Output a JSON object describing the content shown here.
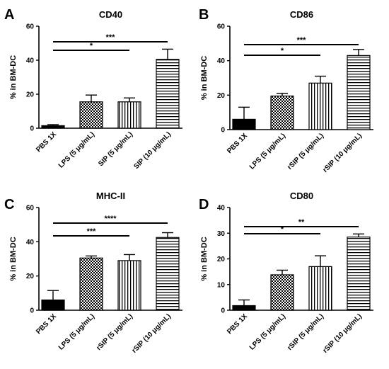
{
  "chart_data": [
    {
      "type": "bar",
      "panel": "A",
      "title": "CD40",
      "ylabel": "% in BM-DC",
      "ylim": [
        0,
        60
      ],
      "yticks": [
        0,
        20,
        40,
        60
      ],
      "categories": [
        "PBS 1X",
        "LPS (5 μg/mL)",
        "SIP (5 μg/mL)",
        "SIP (10 μg/mL)"
      ],
      "values": [
        1.5,
        15.5,
        15.5,
        40.5
      ],
      "errors": [
        0.6,
        4.0,
        2.3,
        6.0
      ],
      "patterns": [
        "solid",
        "checker",
        "vertical",
        "horizontal"
      ],
      "significance": [
        {
          "from": 0,
          "to": 2,
          "label": "*"
        },
        {
          "from": 0,
          "to": 3,
          "label": "***"
        }
      ]
    },
    {
      "type": "bar",
      "panel": "B",
      "title": "CD86",
      "ylabel": "% in BM-DC",
      "ylim": [
        0,
        60
      ],
      "yticks": [
        0,
        20,
        40,
        60
      ],
      "categories": [
        "PBS 1X",
        "LPS (5 μg/mL)",
        "rSIP (5 μg/mL)",
        "rSIP (10 μg/mL)"
      ],
      "values": [
        6,
        19.5,
        27,
        43
      ],
      "errors": [
        7,
        1.5,
        4,
        3.5
      ],
      "patterns": [
        "solid",
        "checker",
        "vertical",
        "horizontal"
      ],
      "significance": [
        {
          "from": 0,
          "to": 2,
          "label": "*"
        },
        {
          "from": 0,
          "to": 3,
          "label": "***"
        }
      ]
    },
    {
      "type": "bar",
      "panel": "C",
      "title": "MHC-II",
      "ylabel": "% in BM-DC",
      "ylim": [
        0,
        60
      ],
      "yticks": [
        0,
        20,
        40,
        60
      ],
      "categories": [
        "PBS 1X",
        "LPS (5 μg/mL)",
        "rSIP (5 μg/mL)",
        "rSIP (10 μg/mL)"
      ],
      "values": [
        6,
        30.5,
        29,
        42.5
      ],
      "errors": [
        5.5,
        1.2,
        3.5,
        2.8
      ],
      "patterns": [
        "solid",
        "checker",
        "vertical",
        "horizontal"
      ],
      "significance": [
        {
          "from": 0,
          "to": 2,
          "label": "***"
        },
        {
          "from": 0,
          "to": 3,
          "label": "****"
        }
      ]
    },
    {
      "type": "bar",
      "panel": "D",
      "title": "CD80",
      "ylabel": "% in BM-DC",
      "ylim": [
        0,
        40
      ],
      "yticks": [
        0,
        10,
        20,
        30,
        40
      ],
      "categories": [
        "PBS 1X",
        "LPS (5 μg/mL)",
        "rSIP (5 μg/mL)",
        "rSIP (10 μg/mL)"
      ],
      "values": [
        1.8,
        13.8,
        17,
        28.5
      ],
      "errors": [
        2.2,
        1.8,
        4.2,
        1.2
      ],
      "patterns": [
        "solid",
        "checker",
        "vertical",
        "horizontal"
      ],
      "significance": [
        {
          "from": 0,
          "to": 2,
          "label": "*"
        },
        {
          "from": 0,
          "to": 3,
          "label": "**"
        }
      ]
    }
  ]
}
